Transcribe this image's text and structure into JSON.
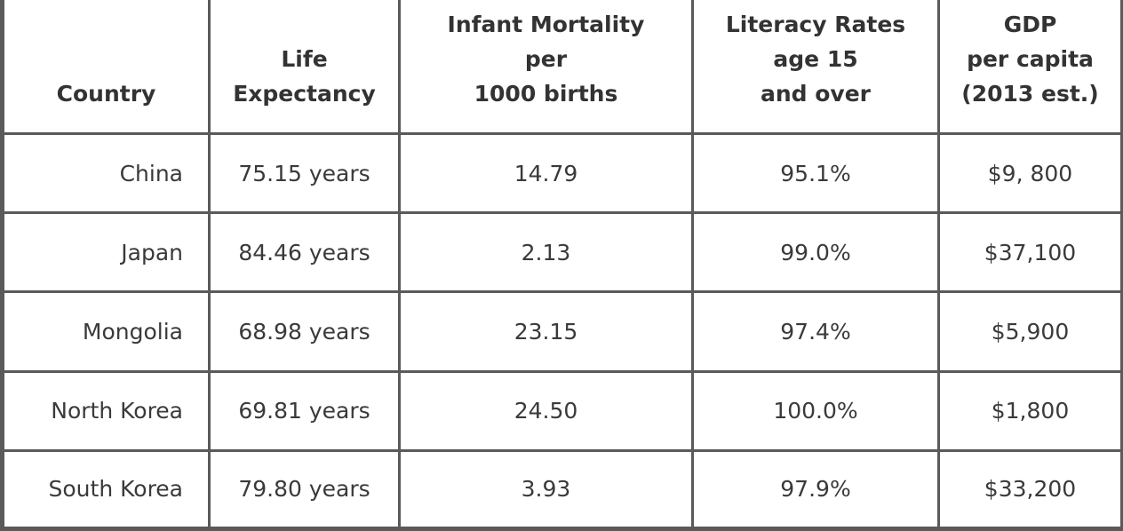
{
  "table": {
    "headers": [
      [
        "Country"
      ],
      [
        "Life",
        "Expectancy"
      ],
      [
        "Infant Mortality",
        "per",
        "1000 births"
      ],
      [
        "Literacy Rates",
        "age 15",
        "and over"
      ],
      [
        "GDP",
        "per capita",
        "(2013 est.)"
      ]
    ],
    "rows": [
      [
        "China",
        "75.15 years",
        "14.79",
        "95.1%",
        "$9, 800"
      ],
      [
        "Japan",
        "84.46 years",
        "2.13",
        "99.0%",
        "$37,100"
      ],
      [
        "Mongolia",
        "68.98 years",
        "23.15",
        "97.4%",
        "$5,900"
      ],
      [
        "North Korea",
        "69.81 years",
        "24.50",
        "100.0%",
        "$1,800"
      ],
      [
        "South Korea",
        "79.80 years",
        "3.93",
        "97.9%",
        "$33,200"
      ]
    ]
  }
}
